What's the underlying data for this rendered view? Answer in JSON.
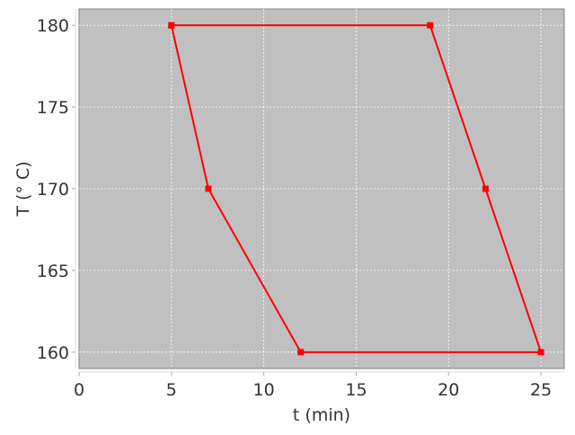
{
  "chart_data": {
    "type": "line",
    "title": "",
    "xlabel": "t (min)",
    "ylabel": "T (° C)",
    "xlim": [
      0,
      26.26
    ],
    "ylim": [
      159,
      181
    ],
    "xticks": [
      0,
      5,
      10,
      15,
      20,
      25
    ],
    "yticks": [
      160,
      165,
      170,
      175,
      180
    ],
    "grid": true,
    "background": "#c0c0c0",
    "series": [
      {
        "color": "#ff0000",
        "marker": "square",
        "x": [
          5,
          19,
          22,
          25,
          12,
          7,
          5
        ],
        "y": [
          180,
          180,
          170,
          160,
          160,
          170,
          180
        ]
      }
    ]
  }
}
